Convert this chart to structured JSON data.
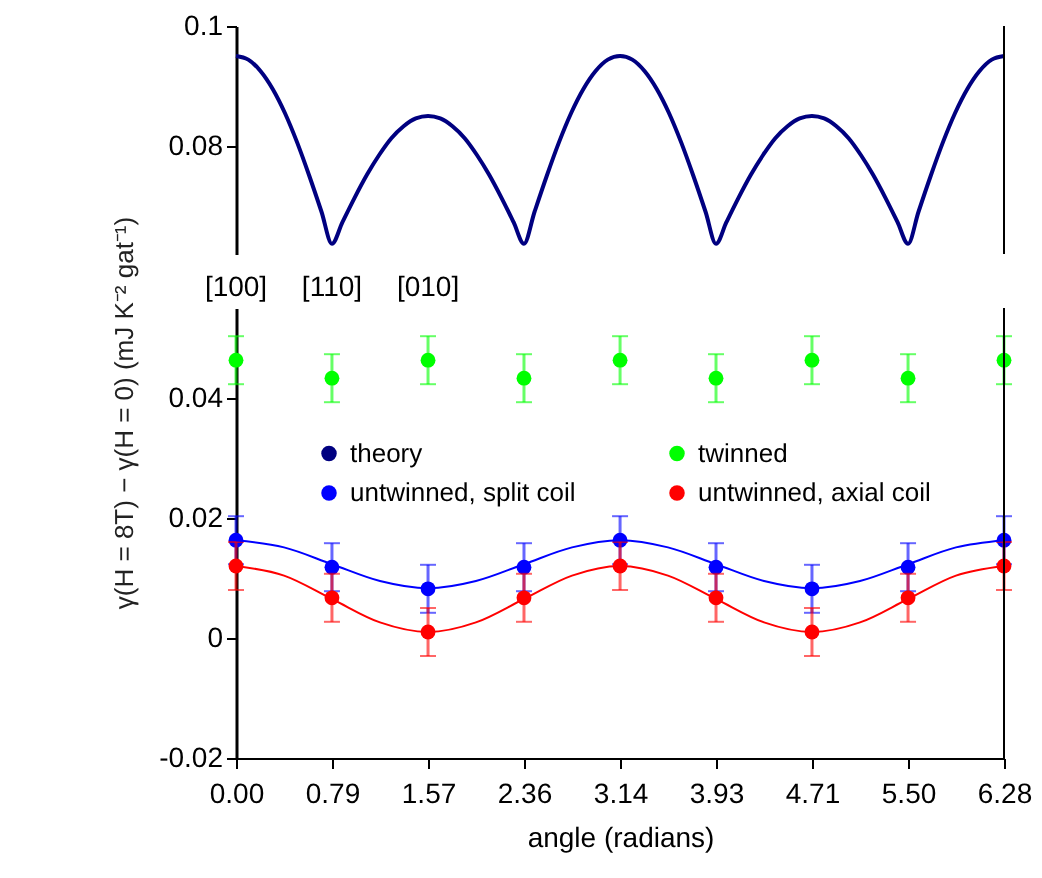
{
  "chart_data": [
    {
      "type": "line",
      "xlim": [
        0,
        6.283
      ],
      "ylim": [
        0.062,
        0.1
      ],
      "yticks": [
        0.08,
        0.1
      ],
      "tick_labels": "y",
      "grid": false,
      "series": [
        {
          "name": "theory",
          "color": "#000080",
          "x": [
            0,
            0.1,
            0.2,
            0.3,
            0.4,
            0.5,
            0.6,
            0.7,
            0.785,
            0.871,
            0.971,
            1.071,
            1.171,
            1.271,
            1.371,
            1.471,
            1.571,
            1.671,
            1.771,
            1.871,
            1.971,
            2.071,
            2.171,
            2.271,
            2.356,
            2.442,
            2.542,
            2.642,
            2.742,
            2.842,
            2.942,
            3.042,
            3.142,
            3.242,
            3.342,
            3.442,
            3.542,
            3.642,
            3.742,
            3.842,
            3.927,
            4.012,
            4.112,
            4.212,
            4.312,
            4.412,
            4.512,
            4.612,
            4.712,
            4.812,
            4.912,
            5.012,
            5.112,
            5.212,
            5.312,
            5.412,
            5.498,
            5.583,
            5.683,
            5.783,
            5.883,
            5.983,
            6.083,
            6.183,
            6.283
          ],
          "values": [
            0.095,
            0.0944,
            0.0925,
            0.0895,
            0.0855,
            0.0806,
            0.075,
            0.069,
            0.0637,
            0.0673,
            0.0714,
            0.0752,
            0.0785,
            0.0813,
            0.0833,
            0.0846,
            0.085,
            0.0846,
            0.0833,
            0.0813,
            0.0785,
            0.0752,
            0.0714,
            0.0673,
            0.0637,
            0.069,
            0.075,
            0.0806,
            0.0855,
            0.0895,
            0.0925,
            0.0944,
            0.095,
            0.0944,
            0.0925,
            0.0895,
            0.0855,
            0.0806,
            0.075,
            0.069,
            0.0637,
            0.0673,
            0.0714,
            0.0752,
            0.0785,
            0.0813,
            0.0833,
            0.0846,
            0.085,
            0.0846,
            0.0833,
            0.0813,
            0.0785,
            0.0752,
            0.0714,
            0.0673,
            0.0637,
            0.069,
            0.075,
            0.0806,
            0.0855,
            0.0895,
            0.0925,
            0.0944,
            0.095
          ]
        }
      ]
    },
    {
      "type": "scatter",
      "xlabel": "angle  (radians)",
      "ylabel": "γ(H = 8T) − γ(H = 0)  (mJ K⁻² gat⁻¹)",
      "xlim": [
        0,
        6.283
      ],
      "ylim": [
        -0.02,
        0.055
      ],
      "xticks": [
        {
          "value": 0,
          "label": "0.00"
        },
        {
          "value": 0.785,
          "label": "0.79"
        },
        {
          "value": 1.571,
          "label": "1.57"
        },
        {
          "value": 2.356,
          "label": "2.36"
        },
        {
          "value": 3.142,
          "label": "3.14"
        },
        {
          "value": 3.927,
          "label": "3.93"
        },
        {
          "value": 4.712,
          "label": "4.71"
        },
        {
          "value": 5.498,
          "label": "5.50"
        },
        {
          "value": 6.283,
          "label": "6.28"
        }
      ],
      "yticks": [
        -0.02,
        0,
        0.02,
        0.04
      ],
      "grid": false,
      "legend": "top",
      "annotations": [
        "[100]",
        "[110]",
        "[010]"
      ],
      "series": [
        {
          "name": "twinned",
          "color": "#00ff00",
          "x": [
            0,
            0.785,
            1.571,
            2.356,
            3.142,
            3.927,
            4.712,
            5.498,
            6.283
          ],
          "values": [
            0.0463,
            0.0433,
            0.0463,
            0.0433,
            0.0463,
            0.0433,
            0.0463,
            0.0433,
            0.0463
          ],
          "errors": [
            0.004,
            0.004,
            0.004,
            0.004,
            0.004,
            0.004,
            0.004,
            0.004,
            0.004
          ]
        },
        {
          "name": "untwinned, split coil",
          "color": "#0000ff",
          "x": [
            0,
            0.785,
            1.571,
            2.356,
            3.142,
            3.927,
            4.712,
            5.498,
            6.283
          ],
          "values": [
            0.0163,
            0.0118,
            0.0082,
            0.0118,
            0.0163,
            0.0118,
            0.0082,
            0.0118,
            0.0163
          ],
          "errors": [
            0.004,
            0.004,
            0.004,
            0.004,
            0.004,
            0.004,
            0.004,
            0.004,
            0.004
          ]
        },
        {
          "name": "untwinned, axial coil",
          "color": "#ff0000",
          "x": [
            0,
            0.785,
            1.571,
            2.356,
            3.142,
            3.927,
            4.712,
            5.498,
            6.283
          ],
          "values": [
            0.012,
            0.0067,
            0.001,
            0.0067,
            0.012,
            0.0067,
            0.001,
            0.0067,
            0.012
          ],
          "errors": [
            0.004,
            0.004,
            0.004,
            0.004,
            0.004,
            0.004,
            0.004,
            0.004,
            0.004
          ]
        },
        {
          "type": "line",
          "color": "#0000ff",
          "x": [
            0,
            0.393,
            0.785,
            1.178,
            1.571,
            1.963,
            2.356,
            2.749,
            3.142,
            3.534,
            3.927,
            4.32,
            4.712,
            5.105,
            5.498,
            5.89,
            6.283
          ],
          "values": [
            0.0163,
            0.0151,
            0.0123,
            0.0095,
            0.0083,
            0.0095,
            0.0123,
            0.0151,
            0.0163,
            0.0151,
            0.0123,
            0.0095,
            0.0083,
            0.0095,
            0.0123,
            0.0151,
            0.0163
          ]
        },
        {
          "type": "line",
          "color": "#ff0000",
          "x": [
            0,
            0.393,
            0.785,
            1.178,
            1.571,
            1.963,
            2.356,
            2.749,
            3.142,
            3.534,
            3.927,
            4.32,
            4.712,
            5.105,
            5.498,
            5.89,
            6.283
          ],
          "values": [
            0.012,
            0.0104,
            0.0065,
            0.0026,
            0.001,
            0.0026,
            0.0065,
            0.0104,
            0.012,
            0.0104,
            0.0065,
            0.0026,
            0.001,
            0.0026,
            0.0065,
            0.0104,
            0.012
          ]
        }
      ]
    }
  ]
}
